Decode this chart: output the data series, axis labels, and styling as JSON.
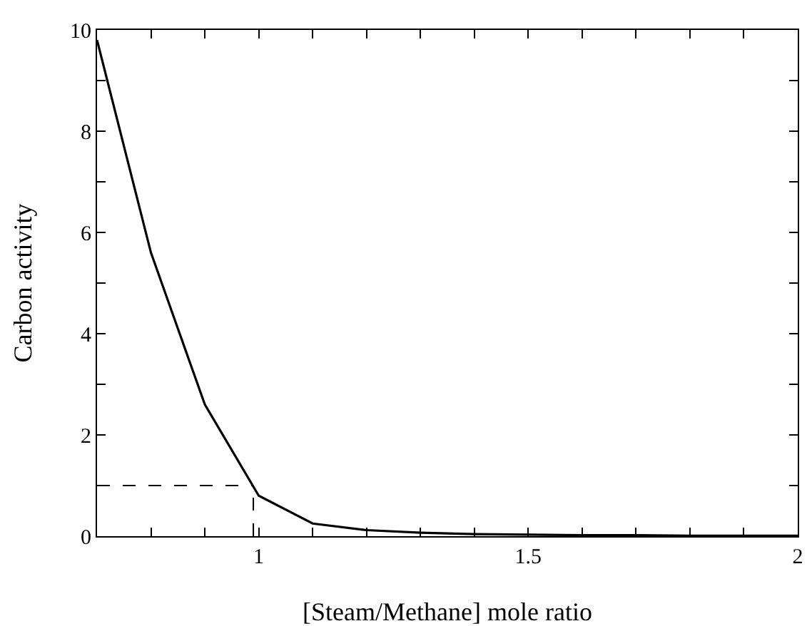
{
  "chart_data": {
    "type": "line",
    "xlabel": "[Steam/Methane] mole ratio",
    "ylabel": "Carbon activity",
    "x": [
      0.7,
      0.8,
      0.9,
      1.0,
      1.1,
      1.2,
      1.3,
      1.4,
      1.5,
      1.6,
      1.7,
      1.8,
      1.9,
      2.0
    ],
    "series": [
      {
        "color": "#000000",
        "values": [
          9.8,
          5.6,
          2.6,
          0.8,
          0.25,
          0.12,
          0.07,
          0.04,
          0.03,
          0.02,
          0.02,
          0.01,
          0.01,
          0.01
        ]
      }
    ],
    "xlim": [
      0.7,
      2
    ],
    "ylim": [
      0,
      10
    ],
    "xticks": [
      {
        "value": 0.7,
        "label": null
      },
      {
        "value": 0.8,
        "label": null
      },
      {
        "value": 0.9,
        "label": null
      },
      1,
      {
        "value": 1.1,
        "label": null
      },
      {
        "value": 1.2,
        "label": null
      },
      {
        "value": 1.3,
        "label": null
      },
      {
        "value": 1.4,
        "label": null
      },
      1.5,
      {
        "value": 1.6,
        "label": null
      },
      {
        "value": 1.7,
        "label": null
      },
      {
        "value": 1.8,
        "label": null
      },
      {
        "value": 1.9,
        "label": null
      },
      2
    ],
    "yticks": [
      0,
      {
        "value": 1,
        "label": null
      },
      2,
      {
        "value": 3,
        "label": null
      },
      4,
      {
        "value": 5,
        "label": null
      },
      6,
      {
        "value": 7,
        "label": null
      },
      8,
      {
        "value": 9,
        "label": null
      },
      10
    ],
    "ref_lines": [
      {
        "axis": "y",
        "value": 1,
        "line_style": "dashed",
        "color": "#000000"
      },
      {
        "axis": "x",
        "value": 0.99,
        "line_style": "dashed",
        "color": "#000000"
      }
    ],
    "grid": false,
    "marker": "none",
    "line_style": "solid"
  }
}
